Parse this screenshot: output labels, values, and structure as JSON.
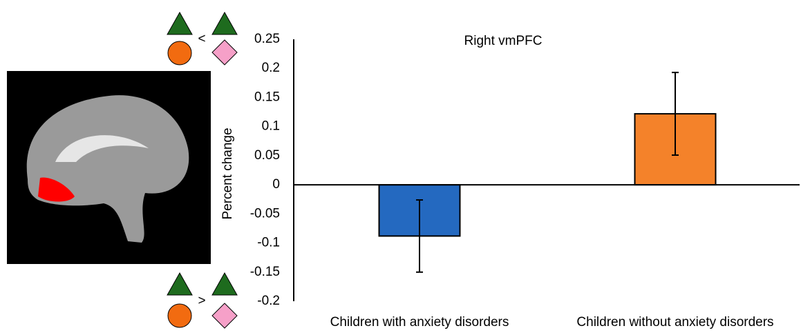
{
  "chart_data": {
    "type": "bar",
    "title": "Right vmPFC",
    "y_label": "Percent change",
    "categories": [
      "Children with anxiety disorders",
      "Children without anxiety disorders"
    ],
    "values": [
      -0.088,
      0.122
    ],
    "errors": [
      0.062,
      0.071
    ],
    "colors": [
      "#2469c0",
      "#f4822a"
    ],
    "ylim": [
      -0.2,
      0.25
    ],
    "yticks": [
      0.25,
      0.2,
      0.15,
      0.1,
      0.05,
      0,
      -0.05,
      -0.1,
      -0.15,
      -0.2
    ],
    "grid": false,
    "annotations": [
      "<",
      ">"
    ]
  }
}
